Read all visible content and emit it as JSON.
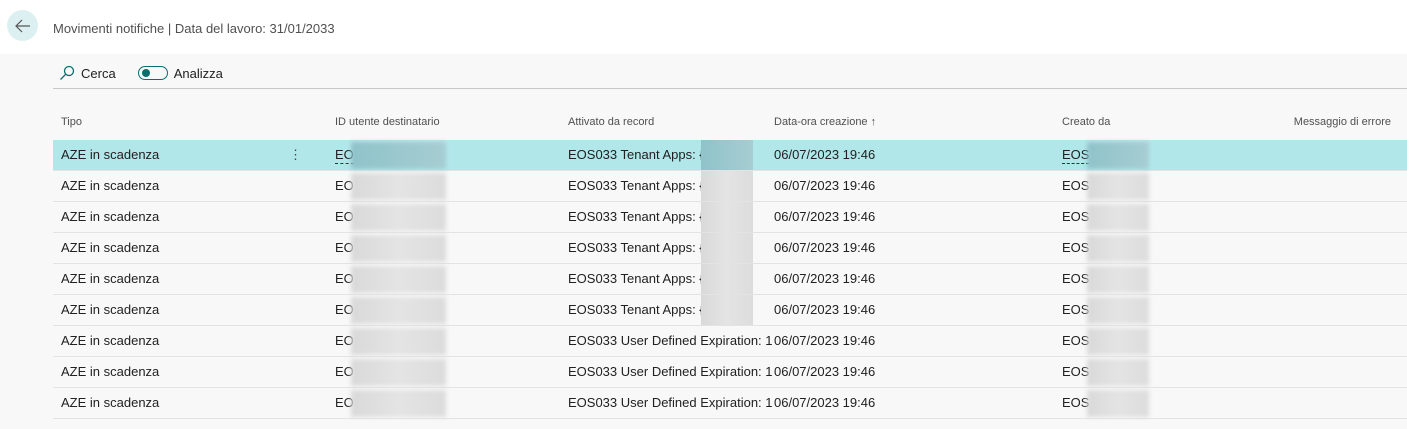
{
  "header": {
    "title": "Movimenti notifiche | Data del lavoro: 31/01/2033"
  },
  "toolbar": {
    "search_label": "Cerca",
    "analyze_label": "Analizza",
    "analyze_on": true
  },
  "colors": {
    "accent": "#0b6e6e",
    "selected_row": "#b2e7ea"
  },
  "columns": [
    "Tipo",
    "ID utente destinatario",
    "Attivato da record",
    "Data-ora creazione",
    "Creato da",
    "Messaggio di errore"
  ],
  "sort_indicator": "↑",
  "rows": [
    {
      "tipo": "AZE in scadenza",
      "id": "EO",
      "record": "EOS033 Tenant Apps: {C…",
      "data": "06/07/2023 19:46",
      "creato": "EOS"
    },
    {
      "tipo": "AZE in scadenza",
      "id": "EO",
      "record": "EOS033 Tenant Apps: {C…",
      "data": "06/07/2023 19:46",
      "creato": "EOS"
    },
    {
      "tipo": "AZE in scadenza",
      "id": "EO",
      "record": "EOS033 Tenant Apps: {C…",
      "data": "06/07/2023 19:46",
      "creato": "EOS"
    },
    {
      "tipo": "AZE in scadenza",
      "id": "EO",
      "record": "EOS033 Tenant Apps: {C…",
      "data": "06/07/2023 19:46",
      "creato": "EOS"
    },
    {
      "tipo": "AZE in scadenza",
      "id": "EO",
      "record": "EOS033 Tenant Apps: {C…",
      "data": "06/07/2023 19:46",
      "creato": "EOS"
    },
    {
      "tipo": "AZE in scadenza",
      "id": "EO",
      "record": "EOS033 Tenant Apps: {C…",
      "data": "06/07/2023 19:46",
      "creato": "EOS"
    },
    {
      "tipo": "AZE in scadenza",
      "id": "EO",
      "record": "EOS033 User Defined Expiration: 1",
      "data": "06/07/2023 19:46",
      "creato": "EOS"
    },
    {
      "tipo": "AZE in scadenza",
      "id": "EO",
      "record": "EOS033 User Defined Expiration: 1",
      "data": "06/07/2023 19:46",
      "creato": "EOS"
    },
    {
      "tipo": "AZE in scadenza",
      "id": "EO",
      "record": "EOS033 User Defined Expiration: 1",
      "data": "06/07/2023 19:46",
      "creato": "EOS"
    }
  ]
}
